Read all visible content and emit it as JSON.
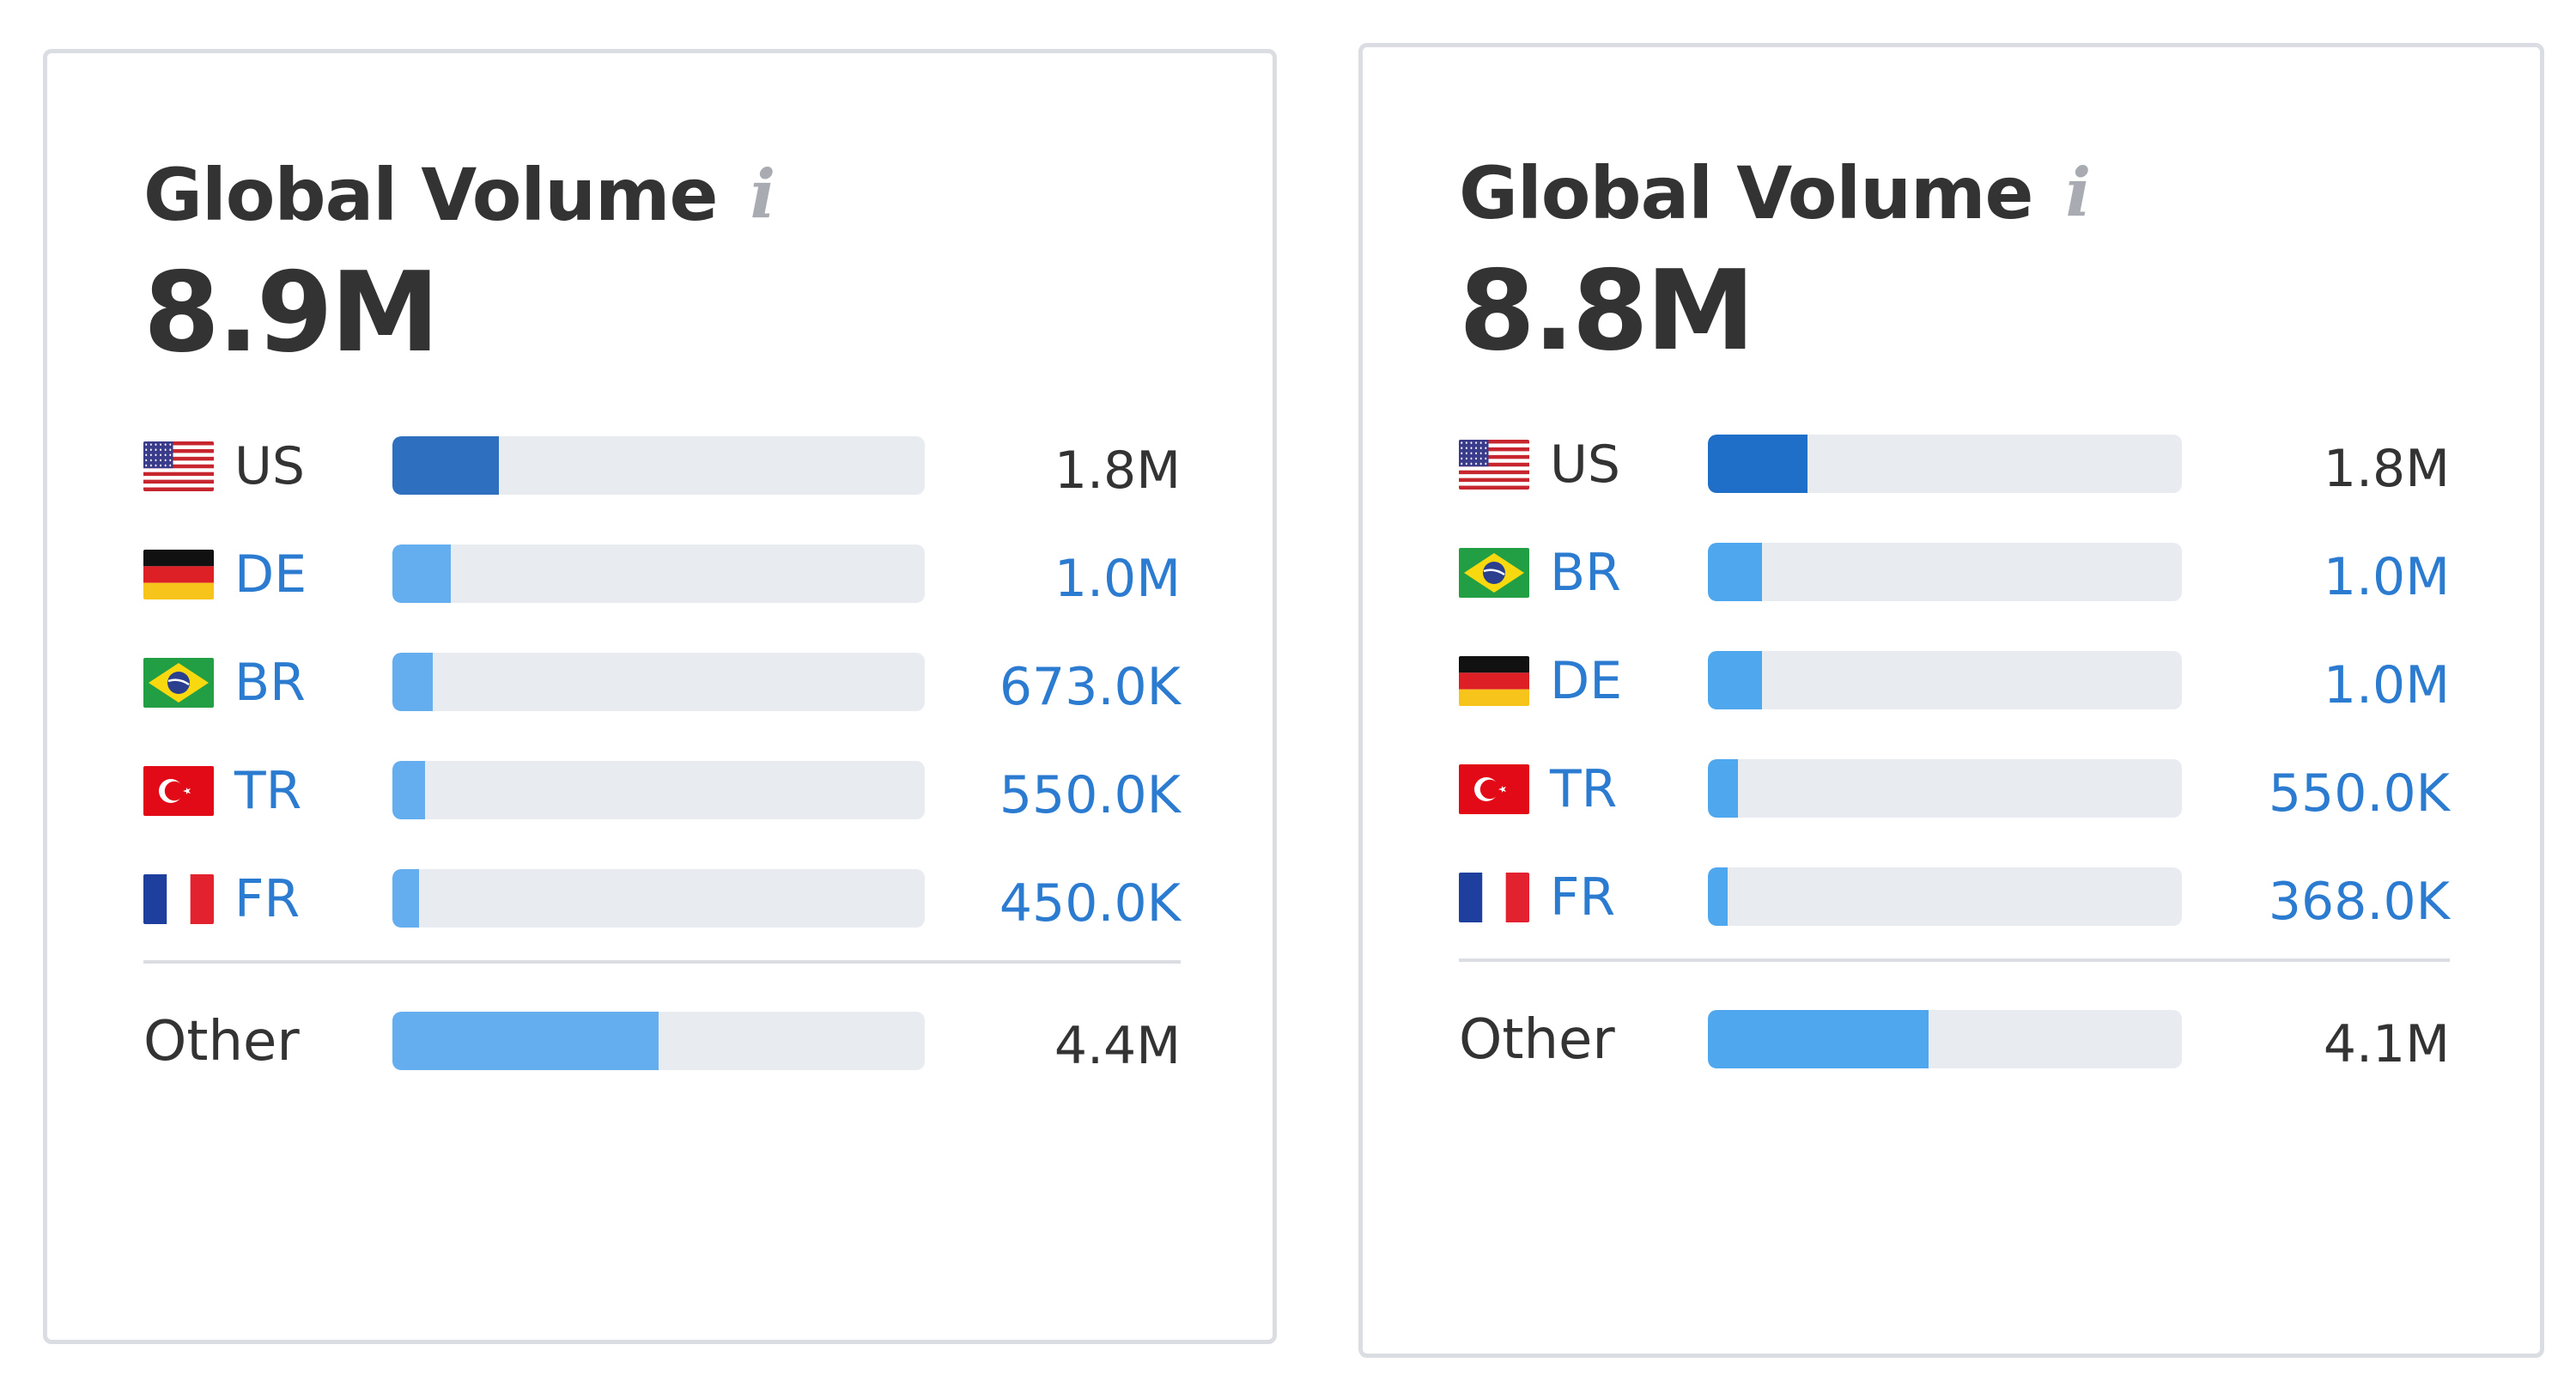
{
  "cards": [
    {
      "title": "Global Volume",
      "info_icon": "info-icon",
      "total": "8.9M",
      "countries": [
        {
          "code": "US",
          "flag": "us-flag-icon",
          "value": "1.8M",
          "share": 0.2,
          "linked": false
        },
        {
          "code": "DE",
          "flag": "de-flag-icon",
          "value": "1.0M",
          "share": 0.11,
          "linked": true
        },
        {
          "code": "BR",
          "flag": "br-flag-icon",
          "value": "673.0K",
          "share": 0.075,
          "linked": true
        },
        {
          "code": "TR",
          "flag": "tr-flag-icon",
          "value": "550.0K",
          "share": 0.062,
          "linked": true
        },
        {
          "code": "FR",
          "flag": "fr-flag-icon",
          "value": "450.0K",
          "share": 0.05,
          "linked": true
        }
      ],
      "other": {
        "label": "Other",
        "value": "4.4M",
        "share": 0.5
      }
    },
    {
      "title": "Global Volume",
      "info_icon": "info-icon",
      "total": "8.8M",
      "countries": [
        {
          "code": "US",
          "flag": "us-flag-icon",
          "value": "1.8M",
          "share": 0.21,
          "linked": false
        },
        {
          "code": "BR",
          "flag": "br-flag-icon",
          "value": "1.0M",
          "share": 0.115,
          "linked": true
        },
        {
          "code": "DE",
          "flag": "de-flag-icon",
          "value": "1.0M",
          "share": 0.115,
          "linked": true
        },
        {
          "code": "TR",
          "flag": "tr-flag-icon",
          "value": "550.0K",
          "share": 0.063,
          "linked": true
        },
        {
          "code": "FR",
          "flag": "fr-flag-icon",
          "value": "368.0K",
          "share": 0.042,
          "linked": true
        }
      ],
      "other": {
        "label": "Other",
        "value": "4.1M",
        "share": 0.465
      }
    }
  ],
  "colors": {
    "link": "#2b7bd0",
    "text": "#333333",
    "bar_track": "#e8ecf1",
    "bar_fill": "#64adef",
    "bar_fill_top": "#2f6fc0"
  }
}
